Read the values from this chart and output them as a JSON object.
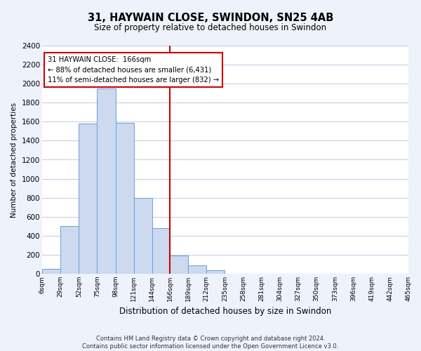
{
  "title": "31, HAYWAIN CLOSE, SWINDON, SN25 4AB",
  "subtitle": "Size of property relative to detached houses in Swindon",
  "xlabel": "Distribution of detached houses by size in Swindon",
  "ylabel": "Number of detached properties",
  "bin_edges": [
    6,
    29,
    52,
    75,
    98,
    121,
    144,
    166,
    189,
    212,
    235,
    258,
    281,
    304,
    327,
    350,
    373,
    396,
    419,
    442,
    465
  ],
  "bin_counts": [
    50,
    500,
    1580,
    1950,
    1590,
    800,
    480,
    190,
    90,
    35,
    0,
    0,
    0,
    0,
    0,
    0,
    0,
    0,
    0,
    0
  ],
  "bar_color": "#ccd9ef",
  "bar_edge_color": "#6a9fd8",
  "property_size": 166,
  "vline_color": "#cc0000",
  "annotation_line1": "31 HAYWAIN CLOSE:  166sqm",
  "annotation_line2": "← 88% of detached houses are smaller (6,431)",
  "annotation_line3": "11% of semi-detached houses are larger (832) →",
  "annotation_box_color": "#ffffff",
  "annotation_box_edge_color": "#cc0000",
  "ylim": [
    0,
    2400
  ],
  "yticks": [
    0,
    200,
    400,
    600,
    800,
    1000,
    1200,
    1400,
    1600,
    1800,
    2000,
    2200,
    2400
  ],
  "tick_labels": [
    "6sqm",
    "29sqm",
    "52sqm",
    "75sqm",
    "98sqm",
    "121sqm",
    "144sqm",
    "166sqm",
    "189sqm",
    "212sqm",
    "235sqm",
    "258sqm",
    "281sqm",
    "304sqm",
    "327sqm",
    "350sqm",
    "373sqm",
    "396sqm",
    "419sqm",
    "442sqm",
    "465sqm"
  ],
  "footer_text": "Contains HM Land Registry data © Crown copyright and database right 2024.\nContains public sector information licensed under the Open Government Licence v3.0.",
  "background_color": "#eef2fb",
  "plot_background_color": "#ffffff",
  "grid_color": "#c8d0e8",
  "title_fontsize": 10.5,
  "subtitle_fontsize": 8.5,
  "xlabel_fontsize": 8.5,
  "ylabel_fontsize": 7.5,
  "xtick_fontsize": 6.5,
  "ytick_fontsize": 7.5,
  "footer_fontsize": 6.0
}
